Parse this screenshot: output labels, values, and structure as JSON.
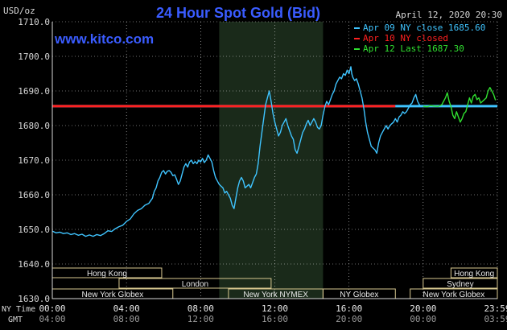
{
  "chart_data": {
    "type": "line",
    "title": "24 Hour Spot Gold (Bid)",
    "website": "www.kitco.com",
    "datetime": "April 12, 2020 20:30",
    "y_unit_label": "USD/oz",
    "ylim": [
      1630.0,
      1710.0
    ],
    "y_ticks": [
      "1630.0",
      "1640.0",
      "1650.0",
      "1660.0",
      "1670.0",
      "1680.0",
      "1690.0",
      "1700.0",
      "1710.0"
    ],
    "x_labels_ny": [
      "00:00",
      "04:00",
      "08:00",
      "12:00",
      "16:00",
      "20:00",
      "23:59"
    ],
    "x_labels_gmt": [
      "04:00",
      "08:00",
      "12:00",
      "16:00",
      "20:00",
      "00:00",
      "03:59"
    ],
    "x_row_label_ny": "NY Time",
    "x_row_label_gmt": "GMT",
    "legend": [
      {
        "text": "Apr 09 NY close 1685.60",
        "color": "#3fc4ff"
      },
      {
        "text": "Apr 10 NY closed",
        "color": "#ff2020"
      },
      {
        "text": "Apr 12 Last 1687.30",
        "color": "#30e030"
      }
    ],
    "reference_lines": [
      {
        "value": 1685.6,
        "from": 0,
        "to": 24,
        "color": "#3fc4ff"
      },
      {
        "value": 1685.6,
        "from": 0,
        "to": 18.5,
        "color": "#ff2020"
      }
    ],
    "highlight_band": {
      "from": 9,
      "to": 14.6,
      "color": "#1a2a1a"
    },
    "sessions_row1": [
      {
        "label": "Hong Kong",
        "from": 0,
        "to": 5.9
      },
      {
        "label": "Hong Kong",
        "from": 21.5,
        "to": 24
      }
    ],
    "sessions_row2": [
      {
        "label": "London",
        "from": 3.6,
        "to": 11.8
      },
      {
        "label": "Sydney",
        "from": 20.0,
        "to": 24
      }
    ],
    "sessions_row3": [
      {
        "label": "New York Globex",
        "from": 0,
        "to": 6.5
      },
      {
        "label": "New York NYMEX",
        "from": 9.5,
        "to": 14.6
      },
      {
        "label": "NY Globex",
        "from": 14.6,
        "to": 18.5
      },
      {
        "label": "New York Globex",
        "from": 19.3,
        "to": 24
      }
    ],
    "series": [
      {
        "name": "Apr 09",
        "color": "#3fc4ff",
        "points": [
          [
            0.0,
            1649.5
          ],
          [
            0.2,
            1649.0
          ],
          [
            0.4,
            1649.2
          ],
          [
            0.6,
            1648.8
          ],
          [
            0.8,
            1649.0
          ],
          [
            1.0,
            1648.5
          ],
          [
            1.2,
            1648.8
          ],
          [
            1.4,
            1648.3
          ],
          [
            1.6,
            1648.6
          ],
          [
            1.8,
            1648.0
          ],
          [
            2.0,
            1648.4
          ],
          [
            2.2,
            1648.0
          ],
          [
            2.4,
            1648.5
          ],
          [
            2.6,
            1648.2
          ],
          [
            2.8,
            1648.8
          ],
          [
            3.0,
            1649.6
          ],
          [
            3.2,
            1649.4
          ],
          [
            3.4,
            1650.2
          ],
          [
            3.6,
            1650.8
          ],
          [
            3.8,
            1651.2
          ],
          [
            4.0,
            1652.3
          ],
          [
            4.2,
            1653.0
          ],
          [
            4.4,
            1654.5
          ],
          [
            4.6,
            1655.5
          ],
          [
            4.8,
            1656.0
          ],
          [
            5.0,
            1657.0
          ],
          [
            5.2,
            1657.5
          ],
          [
            5.4,
            1659.0
          ],
          [
            5.5,
            1661.0
          ],
          [
            5.6,
            1662.0
          ],
          [
            5.7,
            1664.0
          ],
          [
            5.8,
            1665.0
          ],
          [
            5.9,
            1666.5
          ],
          [
            6.0,
            1667.0
          ],
          [
            6.1,
            1666.0
          ],
          [
            6.2,
            1666.8
          ],
          [
            6.3,
            1667.0
          ],
          [
            6.4,
            1666.5
          ],
          [
            6.5,
            1665.5
          ],
          [
            6.6,
            1665.8
          ],
          [
            6.7,
            1664.5
          ],
          [
            6.8,
            1663.0
          ],
          [
            6.9,
            1664.0
          ],
          [
            7.0,
            1666.0
          ],
          [
            7.1,
            1668.0
          ],
          [
            7.2,
            1669.0
          ],
          [
            7.3,
            1668.0
          ],
          [
            7.4,
            1669.5
          ],
          [
            7.5,
            1670.0
          ],
          [
            7.6,
            1669.0
          ],
          [
            7.7,
            1669.6
          ],
          [
            7.8,
            1669.0
          ],
          [
            7.9,
            1670.0
          ],
          [
            8.0,
            1669.5
          ],
          [
            8.1,
            1670.5
          ],
          [
            8.2,
            1669.3
          ],
          [
            8.3,
            1670.0
          ],
          [
            8.4,
            1671.5
          ],
          [
            8.5,
            1670.5
          ],
          [
            8.6,
            1669.5
          ],
          [
            8.7,
            1667.0
          ],
          [
            8.8,
            1665.0
          ],
          [
            8.9,
            1664.0
          ],
          [
            9.0,
            1663.0
          ],
          [
            9.1,
            1662.5
          ],
          [
            9.2,
            1662.0
          ],
          [
            9.3,
            1660.5
          ],
          [
            9.4,
            1661.0
          ],
          [
            9.5,
            1660.0
          ],
          [
            9.6,
            1659.0
          ],
          [
            9.7,
            1657.0
          ],
          [
            9.8,
            1656.0
          ],
          [
            9.9,
            1659.0
          ],
          [
            10.0,
            1662.0
          ],
          [
            10.1,
            1664.0
          ],
          [
            10.2,
            1665.0
          ],
          [
            10.3,
            1664.0
          ],
          [
            10.4,
            1662.0
          ],
          [
            10.5,
            1662.5
          ],
          [
            10.6,
            1663.0
          ],
          [
            10.7,
            1662.0
          ],
          [
            10.8,
            1663.5
          ],
          [
            10.9,
            1665.0
          ],
          [
            11.0,
            1666.0
          ],
          [
            11.1,
            1669.0
          ],
          [
            11.2,
            1674.0
          ],
          [
            11.3,
            1678.0
          ],
          [
            11.4,
            1682.0
          ],
          [
            11.5,
            1686.0
          ],
          [
            11.6,
            1688.0
          ],
          [
            11.7,
            1690.0
          ],
          [
            11.8,
            1687.0
          ],
          [
            11.9,
            1683.5
          ],
          [
            12.0,
            1681.0
          ],
          [
            12.1,
            1679.0
          ],
          [
            12.2,
            1677.0
          ],
          [
            12.3,
            1678.0
          ],
          [
            12.4,
            1680.0
          ],
          [
            12.5,
            1681.0
          ],
          [
            12.6,
            1682.0
          ],
          [
            12.7,
            1680.0
          ],
          [
            12.8,
            1678.5
          ],
          [
            12.9,
            1677.0
          ],
          [
            13.0,
            1676.0
          ],
          [
            13.1,
            1673.0
          ],
          [
            13.2,
            1672.0
          ],
          [
            13.3,
            1674.0
          ],
          [
            13.4,
            1676.0
          ],
          [
            13.5,
            1678.0
          ],
          [
            13.6,
            1679.0
          ],
          [
            13.7,
            1680.5
          ],
          [
            13.8,
            1681.5
          ],
          [
            13.9,
            1680.0
          ],
          [
            14.0,
            1681.0
          ],
          [
            14.1,
            1682.0
          ],
          [
            14.2,
            1681.0
          ],
          [
            14.3,
            1679.5
          ],
          [
            14.4,
            1679.0
          ],
          [
            14.5,
            1680.0
          ],
          [
            14.6,
            1683.0
          ],
          [
            14.7,
            1685.5
          ],
          [
            14.8,
            1687.0
          ],
          [
            14.9,
            1686.0
          ],
          [
            15.0,
            1687.5
          ],
          [
            15.1,
            1689.0
          ],
          [
            15.2,
            1690.0
          ],
          [
            15.3,
            1692.0
          ],
          [
            15.4,
            1693.0
          ],
          [
            15.5,
            1694.0
          ],
          [
            15.6,
            1693.5
          ],
          [
            15.7,
            1695.0
          ],
          [
            15.8,
            1694.5
          ],
          [
            15.9,
            1696.0
          ],
          [
            16.0,
            1695.0
          ],
          [
            16.1,
            1697.0
          ],
          [
            16.15,
            1695.0
          ],
          [
            16.2,
            1694.0
          ],
          [
            16.3,
            1693.0
          ],
          [
            16.4,
            1693.5
          ],
          [
            16.5,
            1692.0
          ],
          [
            16.6,
            1690.0
          ],
          [
            16.7,
            1688.0
          ],
          [
            16.8,
            1685.0
          ],
          [
            16.9,
            1681.0
          ],
          [
            17.0,
            1678.0
          ],
          [
            17.1,
            1676.0
          ],
          [
            17.2,
            1674.0
          ],
          [
            17.3,
            1673.5
          ],
          [
            17.4,
            1673.0
          ],
          [
            17.5,
            1672.0
          ],
          [
            17.6,
            1675.0
          ],
          [
            17.7,
            1677.0
          ],
          [
            17.8,
            1678.0
          ],
          [
            17.9,
            1679.0
          ],
          [
            18.0,
            1680.0
          ],
          [
            18.1,
            1679.0
          ],
          [
            18.2,
            1680.0
          ],
          [
            18.3,
            1680.5
          ],
          [
            18.4,
            1681.0
          ],
          [
            18.5,
            1682.0
          ],
          [
            18.6,
            1681.0
          ],
          [
            18.7,
            1682.5
          ],
          [
            18.8,
            1683.0
          ],
          [
            18.9,
            1684.0
          ],
          [
            19.0,
            1683.5
          ],
          [
            19.1,
            1684.0
          ],
          [
            19.2,
            1685.0
          ],
          [
            19.3,
            1686.0
          ],
          [
            19.4,
            1686.5
          ],
          [
            19.5,
            1688.0
          ],
          [
            19.6,
            1689.0
          ],
          [
            19.7,
            1687.0
          ],
          [
            19.8,
            1686.0
          ],
          [
            19.9,
            1685.5
          ]
        ]
      },
      {
        "name": "Apr 12",
        "color": "#30e030",
        "points": [
          [
            20.0,
            1685.6
          ],
          [
            20.2,
            1685.4
          ],
          [
            20.4,
            1685.8
          ],
          [
            20.6,
            1685.6
          ],
          [
            20.8,
            1685.5
          ],
          [
            21.0,
            1686.0
          ],
          [
            21.1,
            1687.0
          ],
          [
            21.2,
            1688.0
          ],
          [
            21.3,
            1689.5
          ],
          [
            21.4,
            1687.0
          ],
          [
            21.5,
            1685.5
          ],
          [
            21.6,
            1683.0
          ],
          [
            21.7,
            1682.0
          ],
          [
            21.8,
            1684.0
          ],
          [
            21.9,
            1682.5
          ],
          [
            22.0,
            1681.0
          ],
          [
            22.1,
            1682.0
          ],
          [
            22.2,
            1683.5
          ],
          [
            22.3,
            1684.0
          ],
          [
            22.4,
            1686.0
          ],
          [
            22.5,
            1688.0
          ],
          [
            22.6,
            1686.5
          ],
          [
            22.7,
            1688.5
          ],
          [
            22.8,
            1689.0
          ],
          [
            22.9,
            1687.5
          ],
          [
            23.0,
            1688.0
          ],
          [
            23.1,
            1686.5
          ],
          [
            23.2,
            1687.0
          ],
          [
            23.3,
            1687.5
          ],
          [
            23.4,
            1688.0
          ],
          [
            23.5,
            1690.0
          ],
          [
            23.6,
            1691.0
          ],
          [
            23.7,
            1690.0
          ],
          [
            23.8,
            1689.0
          ],
          [
            23.9,
            1687.3
          ]
        ]
      }
    ]
  }
}
